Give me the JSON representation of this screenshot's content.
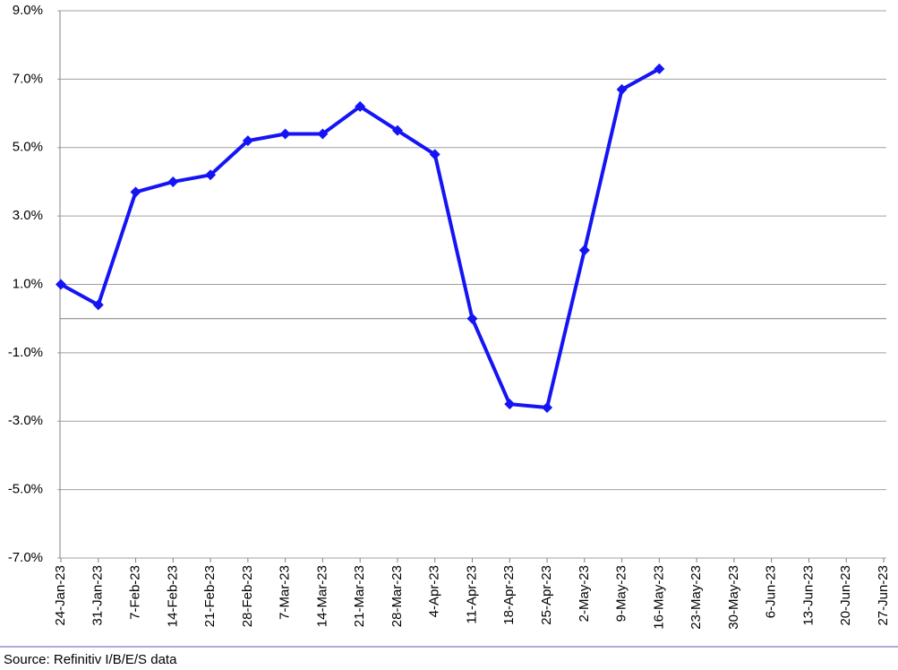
{
  "chart_data": {
    "type": "line",
    "categories": [
      "24-Jan-23",
      "31-Jan-23",
      "7-Feb-23",
      "14-Feb-23",
      "21-Feb-23",
      "28-Feb-23",
      "7-Mar-23",
      "14-Mar-23",
      "21-Mar-23",
      "28-Mar-23",
      "4-Apr-23",
      "11-Apr-23",
      "18-Apr-23",
      "25-Apr-23",
      "2-May-23",
      "9-May-23",
      "16-May-23",
      "23-May-23",
      "30-May-23",
      "6-Jun-23",
      "13-Jun-23",
      "20-Jun-23",
      "27-Jun-23"
    ],
    "values": [
      1.0,
      0.4,
      3.7,
      4.0,
      4.2,
      5.2,
      5.4,
      5.4,
      6.2,
      5.5,
      4.8,
      0.0,
      -2.5,
      -2.6,
      2.0,
      6.7,
      7.3,
      null,
      null,
      null,
      null,
      null,
      null
    ],
    "color": "#1414f5",
    "ylim": [
      -7,
      9
    ],
    "yticks": [
      {
        "value": -7,
        "label": "-7.0%"
      },
      {
        "value": -5,
        "label": "-5.0%"
      },
      {
        "value": -3,
        "label": "-3.0%"
      },
      {
        "value": -1,
        "label": "-1.0%"
      },
      {
        "value": 1,
        "label": "1.0%"
      },
      {
        "value": 3,
        "label": "3.0%"
      },
      {
        "value": 5,
        "label": "5.0%"
      },
      {
        "value": 7,
        "label": "7.0%"
      },
      {
        "value": 9,
        "label": "9.0%"
      }
    ],
    "grid": true,
    "source": "Source: Refinitiv I/B/E/S data"
  }
}
